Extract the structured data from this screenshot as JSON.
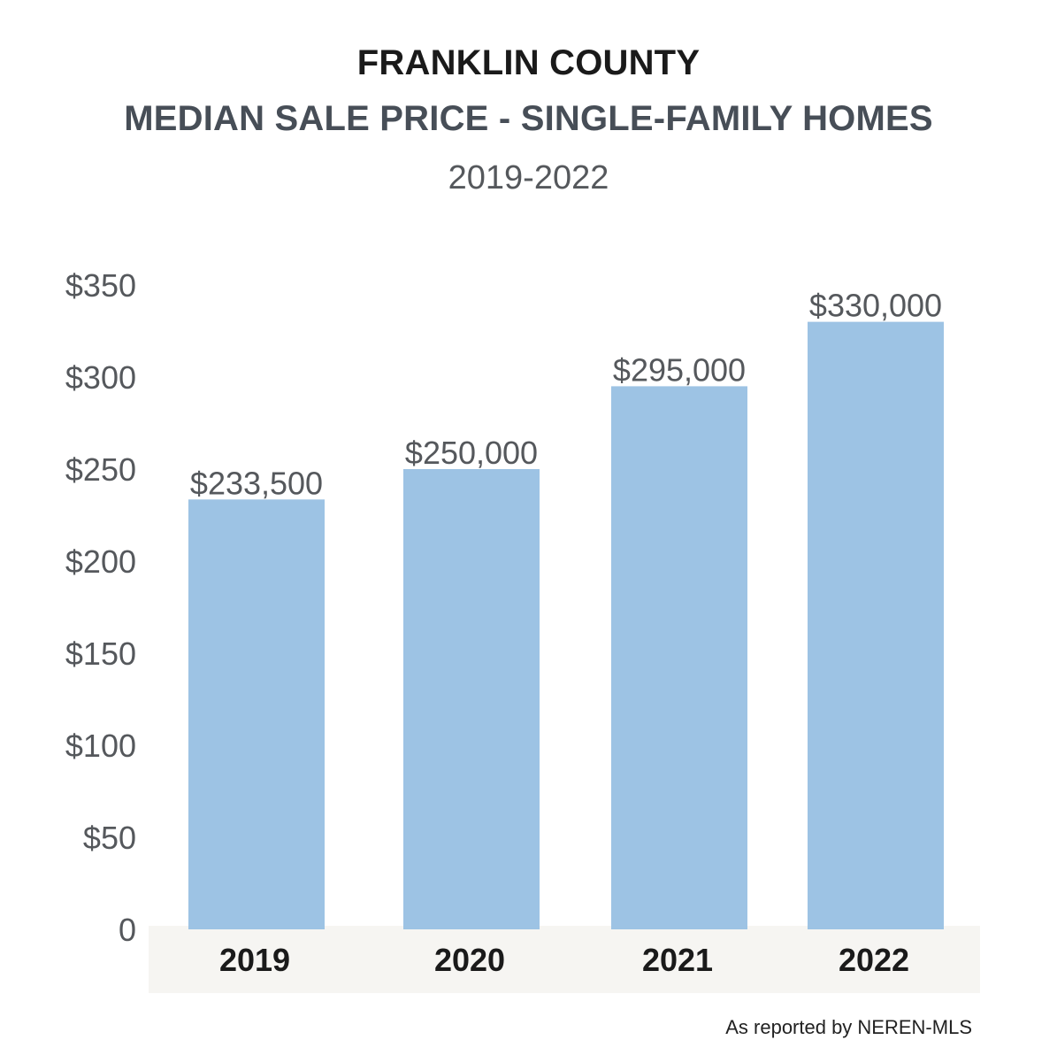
{
  "chart_data": {
    "type": "bar",
    "title": "FRANKLIN COUNTY",
    "subtitle": "MEDIAN SALE PRICE - SINGLE-FAMILY HOMES",
    "period": "2019-2022",
    "categories": [
      "2019",
      "2020",
      "2021",
      "2022"
    ],
    "values": [
      233500,
      250000,
      295000,
      330000
    ],
    "value_labels": [
      "$233,500",
      "$250,000",
      "$295,000",
      "$330,000"
    ],
    "y_ticks": [
      {
        "value": 0,
        "label": "0"
      },
      {
        "value": 50000,
        "label": "$50"
      },
      {
        "value": 100000,
        "label": "$100"
      },
      {
        "value": 150000,
        "label": "$150"
      },
      {
        "value": 200000,
        "label": "$200"
      },
      {
        "value": 250000,
        "label": "$250"
      },
      {
        "value": 300000,
        "label": "$300"
      },
      {
        "value": 350000,
        "label": "$350"
      }
    ],
    "ylim": [
      0,
      350000
    ],
    "xlabel": "",
    "ylabel": "",
    "grid": false,
    "legend": "none",
    "bar_color": "#9dc3e4",
    "category_band_color": "#f6f5f2"
  },
  "footer": {
    "source": "As reported by NEREN-MLS"
  }
}
